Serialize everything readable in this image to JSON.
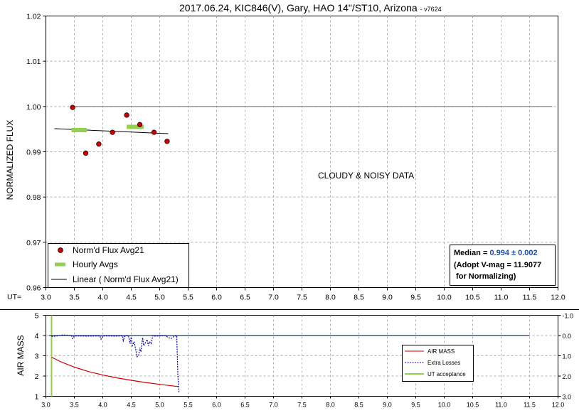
{
  "chart_data": [
    {
      "type": "scatter",
      "title": "2017.06.24, KIC846(V), Gary, HAO 14\"/ST10, Arizona",
      "title_suffix": "- v7624",
      "ylabel": "NORMALIZED FLUX",
      "x_prefix": "UT=",
      "xlim": [
        3.0,
        12.0
      ],
      "ylim": [
        0.96,
        1.02
      ],
      "x_ticks": [
        "3.0",
        "3.5",
        "4.0",
        "4.5",
        "5.0",
        "5.5",
        "6.0",
        "6.5",
        "7.0",
        "7.5",
        "8.0",
        "8.5",
        "9.0",
        "9.5",
        "10.0",
        "10.5",
        "11.0",
        "11.5",
        "12.0"
      ],
      "y_ticks": [
        "0.96",
        "0.97",
        "0.98",
        "0.99",
        "1.00",
        "1.01",
        "1.02"
      ],
      "grid": true,
      "reference_line": {
        "y": 1.0,
        "x": [
          3.45,
          11.9
        ],
        "color": "#808080"
      },
      "series": [
        {
          "name": "Norm'd Flux Avg21",
          "marker": "circle",
          "color": "#cc0000",
          "x": [
            3.47,
            3.7,
            3.93,
            4.17,
            4.42,
            4.65,
            4.9,
            5.13
          ],
          "y": [
            0.9998,
            0.9897,
            0.9917,
            0.9943,
            0.9981,
            0.996,
            0.9943,
            0.9923
          ]
        },
        {
          "name": "Hourly Avgs",
          "marker": "dash",
          "color": "#92d050",
          "segments": [
            {
              "x": [
                3.45,
                3.72
              ],
              "y": 0.9948
            },
            {
              "x": [
                4.42,
                4.72
              ],
              "y": 0.9955
            }
          ]
        },
        {
          "name": "Linear ( Norm'd Flux Avg21)",
          "marker": "line",
          "color": "#000000",
          "x": [
            3.15,
            5.15
          ],
          "y": [
            0.9951,
            0.994
          ]
        }
      ],
      "legend_position": "bottom-left",
      "annotation": "CLOUDY & NOISY DATA",
      "median_box": {
        "label": "Median = ",
        "value": "0.994 ± 0.002",
        "line2": "(Adopt V-mag = 11.9077",
        "line3": " for Normalizing)"
      }
    },
    {
      "type": "line",
      "ylabel": "AIR MASS",
      "xlim": [
        3.0,
        12.0
      ],
      "ylim": [
        1,
        5
      ],
      "ylim_right": [
        3.0,
        -1.0
      ],
      "x_ticks": [
        "3.0",
        "3.5",
        "4.0",
        "4.5",
        "5.0",
        "5.5",
        "6.0",
        "6.5",
        "7.0",
        "7.5",
        "8.0",
        "8.5",
        "9.0",
        "9.5",
        "10.0",
        "10.5",
        "11.0",
        "11.5",
        "12.0"
      ],
      "y_ticks": [
        "1",
        "2",
        "3",
        "4",
        "5"
      ],
      "y_ticks_right": [
        "-1.0",
        "0.0",
        "1.0",
        "2.0",
        "3.0"
      ],
      "grid": true,
      "series": [
        {
          "name": "AIR MASS",
          "color": "#cc0000",
          "style": "solid",
          "x": [
            3.1,
            3.25,
            3.5,
            3.75,
            4.0,
            4.25,
            4.5,
            4.75,
            5.0,
            5.2,
            5.33
          ],
          "y": [
            2.93,
            2.72,
            2.44,
            2.22,
            2.05,
            1.91,
            1.79,
            1.68,
            1.59,
            1.52,
            1.48
          ]
        },
        {
          "name": "Extra Losses",
          "color": "#0000cc",
          "style": "dashed",
          "x": [
            3.1,
            3.2,
            3.3,
            3.45,
            3.47,
            3.5,
            3.7,
            3.95,
            3.97,
            4.0,
            4.1,
            4.2,
            4.35,
            4.36,
            4.38,
            4.42,
            4.45,
            4.48,
            4.5,
            4.52,
            4.55,
            4.58,
            4.6,
            4.63,
            4.65,
            4.67,
            4.7,
            4.72,
            4.75,
            4.78,
            4.8,
            4.82,
            4.85,
            4.88,
            4.9,
            5.0,
            5.1,
            5.15,
            5.2,
            5.25,
            5.3,
            5.32,
            5.34
          ],
          "y": [
            0.05,
            0.02,
            -0.03,
            0.0,
            0.15,
            0.02,
            0.03,
            0.02,
            0.18,
            0.02,
            0.02,
            0.03,
            0.02,
            0.3,
            0.05,
            0.02,
            0.0,
            0.4,
            0.08,
            0.5,
            0.3,
            0.7,
            1.05,
            1.0,
            0.6,
            0.8,
            0.1,
            0.5,
            0.35,
            0.2,
            0.5,
            0.3,
            0.4,
            0.0,
            0.03,
            0.02,
            0.0,
            0.1,
            0.15,
            0.05,
            0.0,
            2.0,
            2.85
          ]
        },
        {
          "name": "UT acceptance",
          "color": "#92d050",
          "style": "vline",
          "x": 3.1
        },
        {
          "name": "",
          "color": "#1f3864",
          "style": "solid",
          "x": [
            3.05,
            11.5
          ],
          "y_right": [
            0.0,
            0.0
          ]
        }
      ],
      "legend_position": "right"
    }
  ]
}
